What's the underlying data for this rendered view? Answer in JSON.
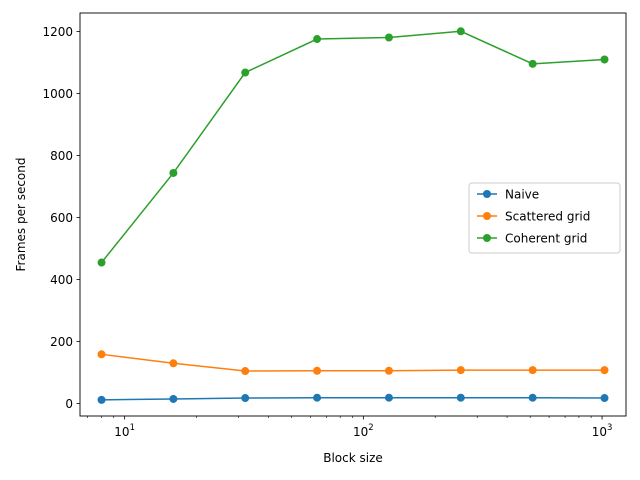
{
  "chart_data": {
    "type": "line",
    "xlabel": "Block size",
    "ylabel": "Frames per second",
    "xscale": "log",
    "xlim": [
      6.5,
      1260
    ],
    "ylim": [
      -40,
      1260
    ],
    "x": [
      8,
      16,
      32,
      64,
      128,
      256,
      512,
      1024
    ],
    "y_ticks": [
      0,
      200,
      400,
      600,
      800,
      1000,
      1200
    ],
    "x_tick_labels": [
      {
        "base": "10",
        "exp": "1",
        "value": 10
      },
      {
        "base": "10",
        "exp": "2",
        "value": 100
      },
      {
        "base": "10",
        "exp": "3",
        "value": 1000
      }
    ],
    "grid": false,
    "legend_position": "center-right",
    "series": [
      {
        "name": "Naive",
        "color": "#1f77b4",
        "values": [
          12,
          15,
          18,
          19,
          19,
          19,
          19,
          18
        ]
      },
      {
        "name": "Scattered grid",
        "color": "#ff7f0e",
        "values": [
          159,
          130,
          105,
          106,
          106,
          108,
          108,
          108
        ]
      },
      {
        "name": "Coherent grid",
        "color": "#2ca02c",
        "values": [
          455,
          744,
          1068,
          1176,
          1181,
          1201,
          1096,
          1110
        ]
      }
    ]
  }
}
